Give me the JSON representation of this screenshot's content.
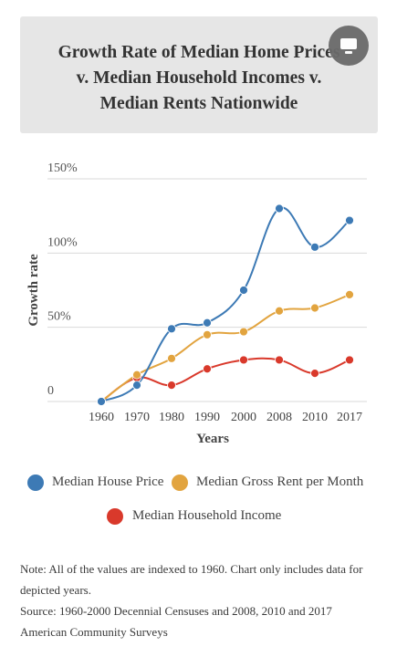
{
  "title_lines": [
    "Growth Rate of Median Home Prices",
    "v. Median Household Incomes v.",
    "Median Rents Nationwide"
  ],
  "legend": [
    {
      "label": "Median House Price",
      "color": "#3d7ab5"
    },
    {
      "label": "Median Gross Rent per Month",
      "color": "#e2a43f"
    },
    {
      "label": "Median Household Income",
      "color": "#d9392b"
    }
  ],
  "notes": {
    "line1": "Note: All of the values are indexed to 1960. Chart only includes data for depicted years.",
    "line2": "Source: 1960-2000 Decennial Censuses and 2008, 2010 and 2017 American Community Surveys"
  },
  "icons": {
    "fullscreen": "screen-icon"
  },
  "chart_data": {
    "type": "line",
    "categories": [
      "1960",
      "1970",
      "1980",
      "1990",
      "2000",
      "2008",
      "2010",
      "2017"
    ],
    "series": [
      {
        "name": "Median House Price",
        "color": "#3d7ab5",
        "values": [
          0,
          11,
          49,
          53,
          75,
          130,
          104,
          122
        ]
      },
      {
        "name": "Median Gross Rent per Month",
        "color": "#e2a43f",
        "values": [
          0,
          18,
          29,
          45,
          47,
          61,
          63,
          72
        ]
      },
      {
        "name": "Median Household Income",
        "color": "#d9392b",
        "values": [
          0,
          16,
          11,
          22,
          28,
          28,
          19,
          28
        ]
      }
    ],
    "title": "Growth Rate of Median Home Prices v. Median Household Incomes v. Median Rents Nationwide",
    "xlabel": "Years",
    "ylabel": "Growth rate",
    "ylim": [
      0,
      150
    ],
    "yticks": [
      0,
      50,
      100,
      150
    ],
    "ytick_labels": [
      "0",
      "50%",
      "100%",
      "150%"
    ],
    "grid": true,
    "legend_position": "bottom"
  }
}
